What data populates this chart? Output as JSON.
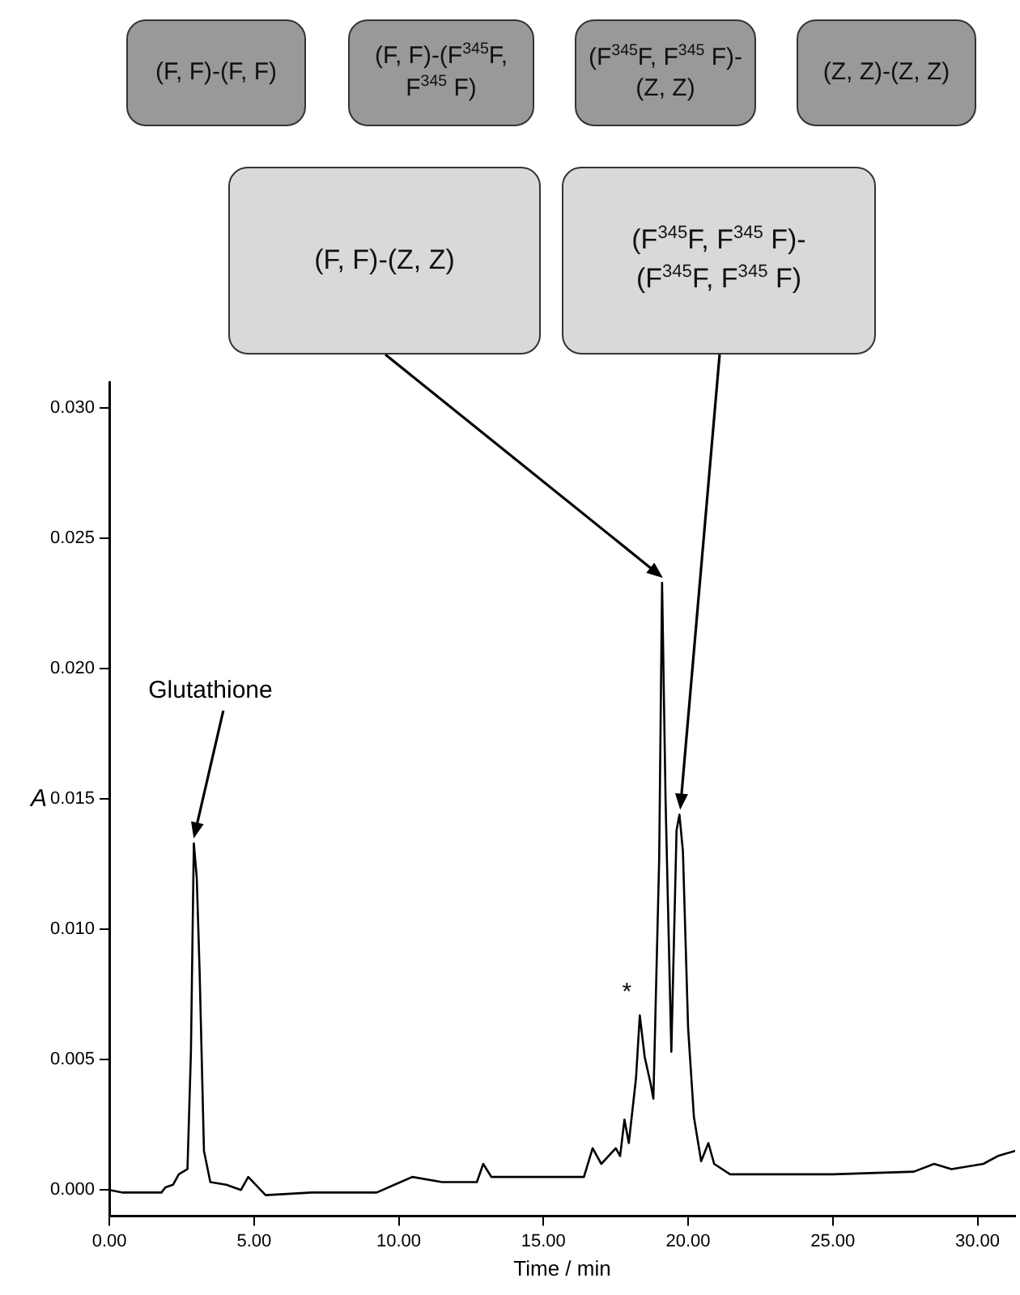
{
  "chart_data": {
    "type": "line",
    "xlabel": "Time / min",
    "ylabel": "A",
    "x": [
      0,
      0.47,
      1.8,
      1.94,
      2.2,
      2.4,
      2.7,
      2.82,
      2.92,
      3.02,
      3.12,
      3.27,
      3.49,
      4.04,
      4.55,
      4.8,
      5.4,
      7.0,
      9.24,
      10.06,
      10.47,
      11.5,
      12.7,
      12.92,
      13.2,
      14.35,
      14.7,
      16.4,
      16.7,
      17.0,
      17.5,
      17.65,
      17.8,
      17.95,
      18.2,
      18.33,
      18.5,
      18.7,
      18.8,
      19.0,
      19.1,
      19.22,
      19.42,
      19.6,
      19.7,
      19.82,
      20.0,
      20.2,
      20.45,
      20.7,
      20.9,
      21.45,
      25.0,
      27.8,
      28.5,
      29.1,
      30.2,
      30.7,
      31.3
    ],
    "series": [
      {
        "color": "#000000",
        "values": [
          0,
          -0.0001,
          -0.0001,
          0.0001,
          0.0002,
          0.0006,
          0.0008,
          0.0053,
          0.0133,
          0.012,
          0.0084,
          0.0015,
          0.0003,
          0.0002,
          0,
          0.0005,
          -0.0002,
          -0.0001,
          -0.0001,
          0.0003,
          0.0005,
          0.0003,
          0.0003,
          0.001,
          0.0005,
          0.0005,
          0.0005,
          0.0005,
          0.0016,
          0.001,
          0.0016,
          0.0013,
          0.0027,
          0.0018,
          0.0043,
          0.0067,
          0.0051,
          0.0041,
          0.0035,
          0.0127,
          0.0233,
          0.015,
          0.0053,
          0.0138,
          0.0144,
          0.013,
          0.0062,
          0.0028,
          0.0011,
          0.0018,
          0.001,
          0.0006,
          0.0006,
          0.0007,
          0.001,
          0.0008,
          0.001,
          0.0013,
          0.0015
        ]
      }
    ],
    "xlim": [
      0,
      31.3
    ],
    "xticks": [
      {
        "value": 0,
        "label": "0.00"
      },
      {
        "value": 5,
        "label": "5.00"
      },
      {
        "value": 10,
        "label": "10.00"
      },
      {
        "value": 15,
        "label": "15.00"
      },
      {
        "value": 20,
        "label": "20.00"
      },
      {
        "value": 25,
        "label": "25.00"
      },
      {
        "value": 30,
        "label": "30.00"
      }
    ],
    "ylim": [
      -0.001,
      0.031
    ],
    "yticks": [
      {
        "value": 0,
        "label": "0.000"
      },
      {
        "value": 0.005,
        "label": "0.005"
      },
      {
        "value": 0.01,
        "label": "0.010"
      },
      {
        "value": 0.015,
        "label": "0.015"
      },
      {
        "value": 0.02,
        "label": "0.020"
      },
      {
        "value": 0.025,
        "label": "0.025"
      },
      {
        "value": 0.03,
        "label": "0.030"
      }
    ],
    "grid": false,
    "legend": false,
    "marker": "none",
    "annotations": [
      "(F, F)-(F, F)",
      "(F, F)-(F$^{345}$F, F$^{345}$ F)",
      "(F$^{345}$F, F$^{345}$ F)-(Z, Z)",
      "(Z, Z)-(Z, Z)",
      "(F, F)-(Z, Z)",
      "(F$^{345}$F, F$^{345}$ F)-(F$^{345}$F, F$^{345}$ F)",
      "Glutathione",
      {
        "text": "*",
        "x": 18.33,
        "y": 0.0067
      }
    ]
  }
}
